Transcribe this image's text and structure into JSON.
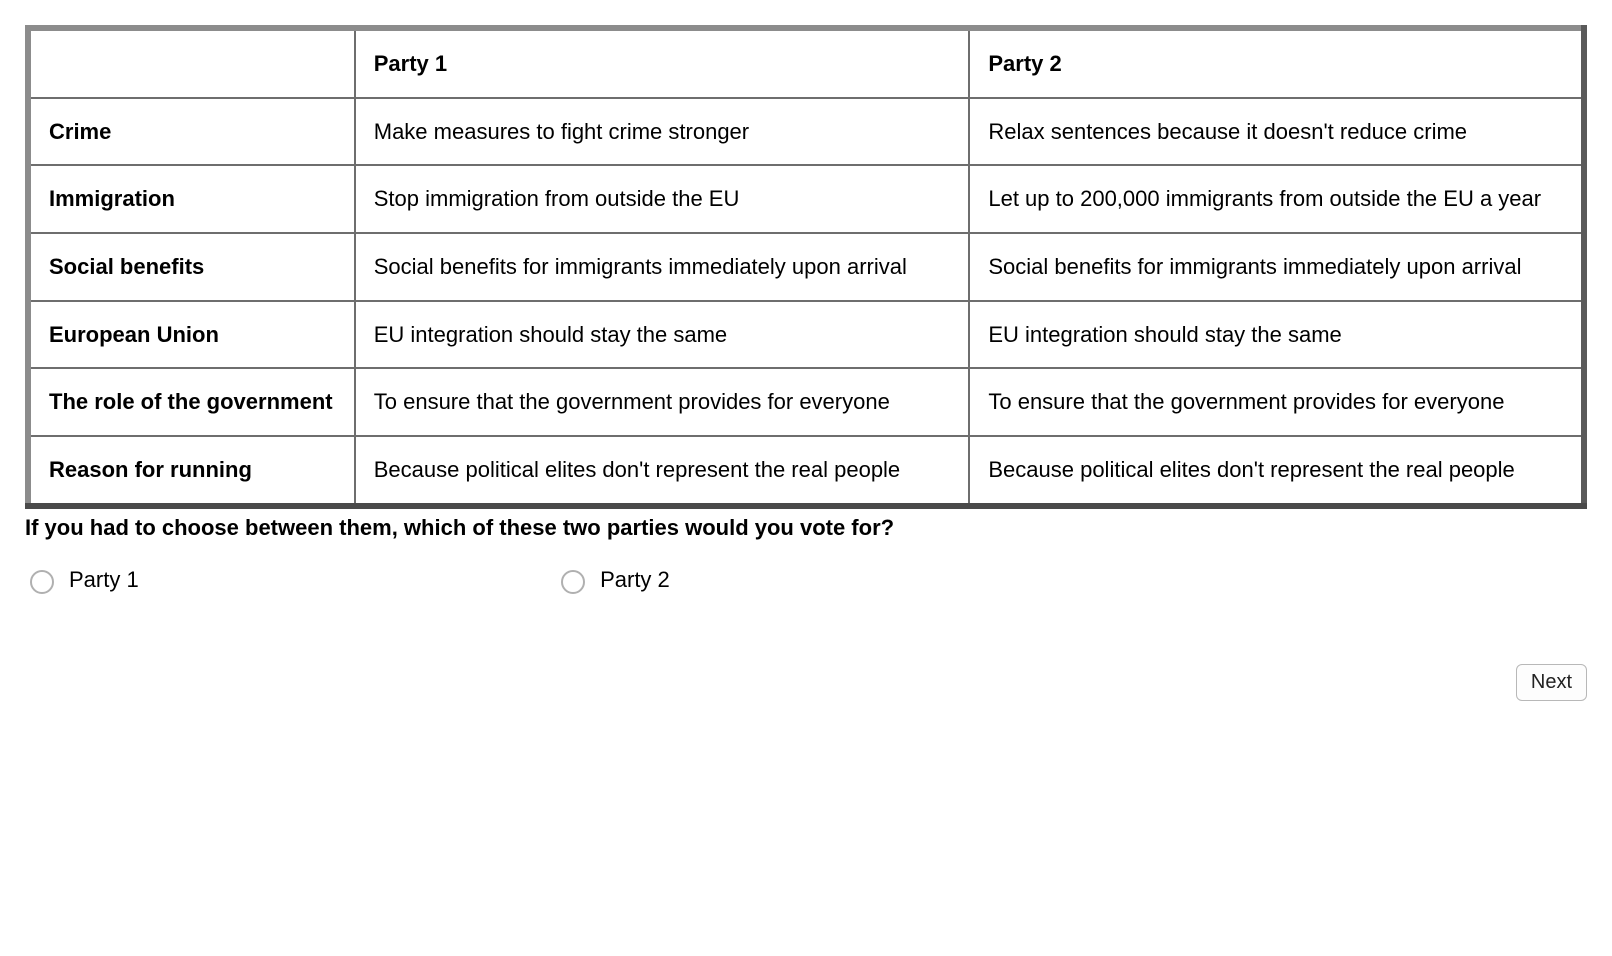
{
  "table": {
    "headers": {
      "topic": "",
      "party1": "Party 1",
      "party2": "Party 2"
    },
    "rows": [
      {
        "topic": "Crime",
        "party1": "Make measures to fight crime stronger",
        "party2": "Relax sentences because it doesn't reduce crime"
      },
      {
        "topic": "Immigration",
        "party1": "Stop immigration from outside the EU",
        "party2": "Let up to 200,000 immigrants from outside the EU a year"
      },
      {
        "topic": "Social benefits",
        "party1": "Social benefits for immigrants immediately upon arrival",
        "party2": "Social benefits for immigrants immediately upon arrival"
      },
      {
        "topic": "European Union",
        "party1": "EU integration should stay the same",
        "party2": "EU integration should stay the same"
      },
      {
        "topic": "The role of the government",
        "party1": "To ensure that the government provides for everyone",
        "party2": "To ensure that the government provides for everyone"
      },
      {
        "topic": "Reason for running",
        "party1": "Because political elites don't represent the real people",
        "party2": "Because political elites don't represent the real people"
      }
    ]
  },
  "question": "If you had to choose between them, which of these two parties would you vote for?",
  "options": {
    "party1": "Party 1",
    "party2": "Party 2"
  },
  "buttons": {
    "next": "Next"
  },
  "style": {
    "border_color": "#6e6e6e",
    "background": "#ffffff",
    "text_color": "#000000",
    "font_size_body": 22,
    "radio_border": "#b0b0b0",
    "button_border": "#b8b8b8",
    "button_bg": "#fdfdfd"
  }
}
